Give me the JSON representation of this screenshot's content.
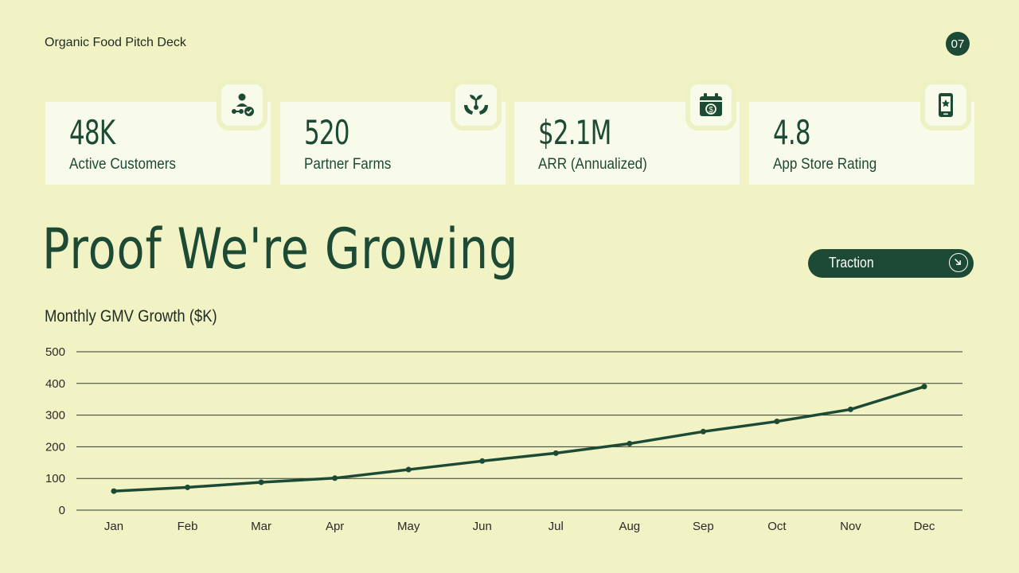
{
  "header": {
    "deck_title": "Organic Food Pitch Deck",
    "page_number": "07"
  },
  "metrics": [
    {
      "value": "48K",
      "label": "Active Customers",
      "icon": "customers-check-icon"
    },
    {
      "value": "520",
      "label": "Partner Farms",
      "icon": "plant-hands-icon"
    },
    {
      "value": "$2.1M",
      "label": "ARR (Annualized)",
      "icon": "calendar-dollar-icon"
    },
    {
      "value": "4.8",
      "label": "App Store Rating",
      "icon": "phone-star-icon"
    }
  ],
  "headline": "Proof We're Growing",
  "section_pill": {
    "label": "Traction",
    "icon": "arrow-down-right-icon"
  },
  "colors": {
    "background": "#f2f3c5",
    "card": "#f9fbea",
    "accent": "#1c4a35"
  },
  "chart_data": {
    "type": "line",
    "title": "Monthly GMV Growth ($K)",
    "categories": [
      "Jan",
      "Feb",
      "Mar",
      "Apr",
      "May",
      "Jun",
      "Jul",
      "Aug",
      "Sep",
      "Oct",
      "Nov",
      "Dec"
    ],
    "series": [
      {
        "values": [
          60,
          72,
          88,
          101,
          128,
          155,
          180,
          210,
          248,
          280,
          318,
          390
        ]
      }
    ],
    "ylim": [
      0,
      500
    ],
    "yticks": [
      0,
      100,
      200,
      300,
      400,
      500
    ],
    "grid": true,
    "legend": "none"
  }
}
